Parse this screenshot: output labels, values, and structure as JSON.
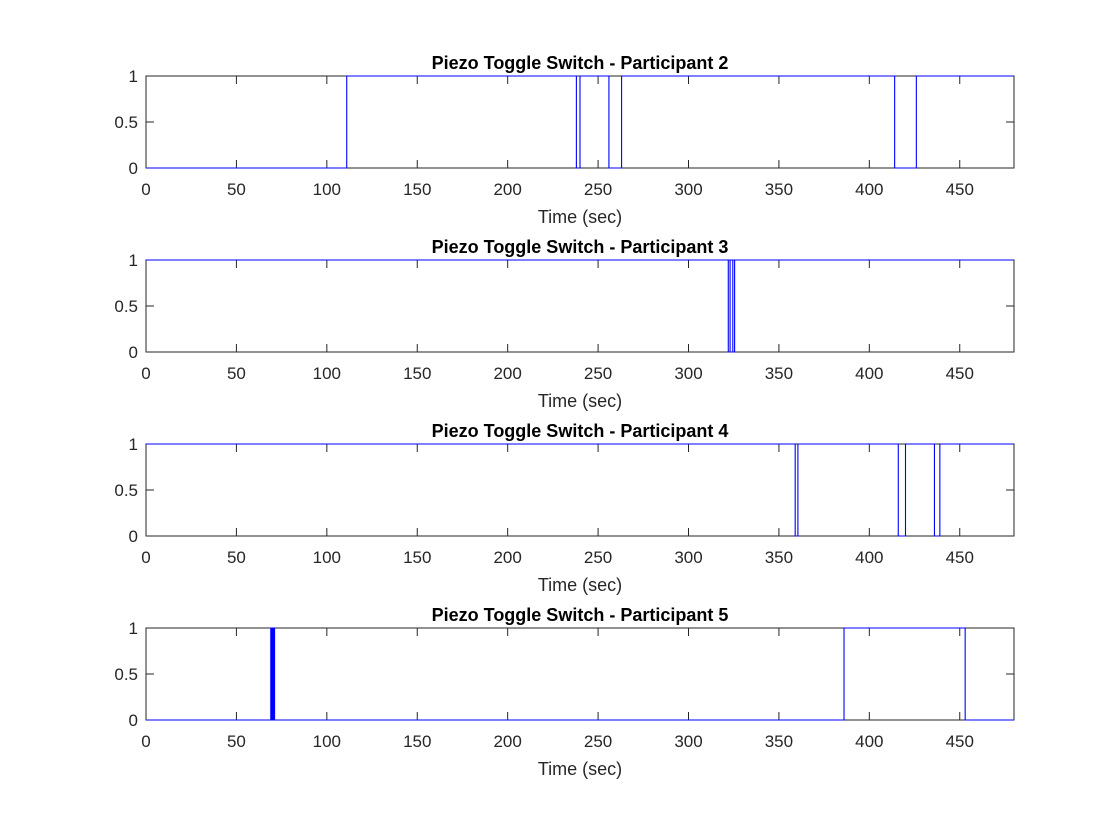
{
  "chart_data": [
    {
      "type": "line",
      "title": "Piezo Toggle Switch - Participant 2",
      "xlabel": "Time (sec)",
      "ylabel": "",
      "xlim": [
        0,
        480
      ],
      "ylim": [
        0,
        1
      ],
      "xticks": [
        "0",
        "50",
        "100",
        "150",
        "200",
        "250",
        "300",
        "350",
        "400",
        "450"
      ],
      "yticks": [
        "0",
        "0.5",
        "1"
      ],
      "series": [
        {
          "color": "#0000ff",
          "x": [
            0,
            111,
            111,
            238,
            238,
            240,
            240,
            256,
            256,
            263,
            263,
            414,
            414,
            426,
            426,
            427,
            427,
            480
          ],
          "y": [
            0,
            0,
            1,
            1,
            0,
            0,
            1,
            1,
            0,
            0,
            1,
            1,
            0,
            0,
            1,
            1,
            1,
            1
          ]
        }
      ]
    },
    {
      "type": "line",
      "title": "Piezo Toggle Switch - Participant 3",
      "xlabel": "Time (sec)",
      "ylabel": "",
      "xlim": [
        0,
        480
      ],
      "ylim": [
        0,
        1
      ],
      "xticks": [
        "0",
        "50",
        "100",
        "150",
        "200",
        "250",
        "300",
        "350",
        "400",
        "450"
      ],
      "yticks": [
        "0",
        "0.5",
        "1"
      ],
      "series": [
        {
          "color": "#0000ff",
          "x": [
            0,
            322,
            322,
            323,
            323,
            324.5,
            324.5,
            325.5,
            325.5,
            480
          ],
          "y": [
            1,
            1,
            0,
            0,
            1,
            1,
            0,
            0,
            1,
            1
          ]
        }
      ]
    },
    {
      "type": "line",
      "title": "Piezo Toggle Switch - Participant 4",
      "xlabel": "Time (sec)",
      "ylabel": "",
      "xlim": [
        0,
        480
      ],
      "ylim": [
        0,
        1
      ],
      "xticks": [
        "0",
        "50",
        "100",
        "150",
        "200",
        "250",
        "300",
        "350",
        "400",
        "450"
      ],
      "yticks": [
        "0",
        "0.5",
        "1"
      ],
      "series": [
        {
          "color": "#0000ff",
          "x": [
            0,
            359,
            359,
            360.5,
            360.5,
            416,
            416,
            420,
            420,
            436,
            436,
            439,
            439,
            480
          ],
          "y": [
            1,
            1,
            0,
            0,
            1,
            1,
            0,
            0,
            1,
            1,
            0,
            0,
            1,
            1
          ]
        }
      ]
    },
    {
      "type": "line",
      "title": "Piezo Toggle Switch - Participant 5",
      "xlabel": "Time (sec)",
      "ylabel": "",
      "xlim": [
        0,
        480
      ],
      "ylim": [
        0,
        1
      ],
      "xticks": [
        "0",
        "50",
        "100",
        "150",
        "200",
        "250",
        "300",
        "350",
        "400",
        "450"
      ],
      "yticks": [
        "0",
        "0.5",
        "1"
      ],
      "series": [
        {
          "color": "#0000ff",
          "x": [
            0,
            69,
            69,
            69.3,
            69.3,
            69.6,
            69.6,
            69.9,
            69.9,
            70.2,
            70.2,
            70.5,
            70.5,
            70.8,
            70.8,
            71.1,
            71.1,
            71.4,
            71.4,
            386,
            386,
            388,
            388,
            453,
            453,
            480
          ],
          "y": [
            0,
            0,
            1,
            1,
            0,
            0,
            1,
            1,
            0,
            0,
            1,
            1,
            0,
            0,
            1,
            1,
            0,
            0,
            0,
            0,
            1,
            1,
            1,
            1,
            0,
            0
          ]
        }
      ]
    }
  ]
}
